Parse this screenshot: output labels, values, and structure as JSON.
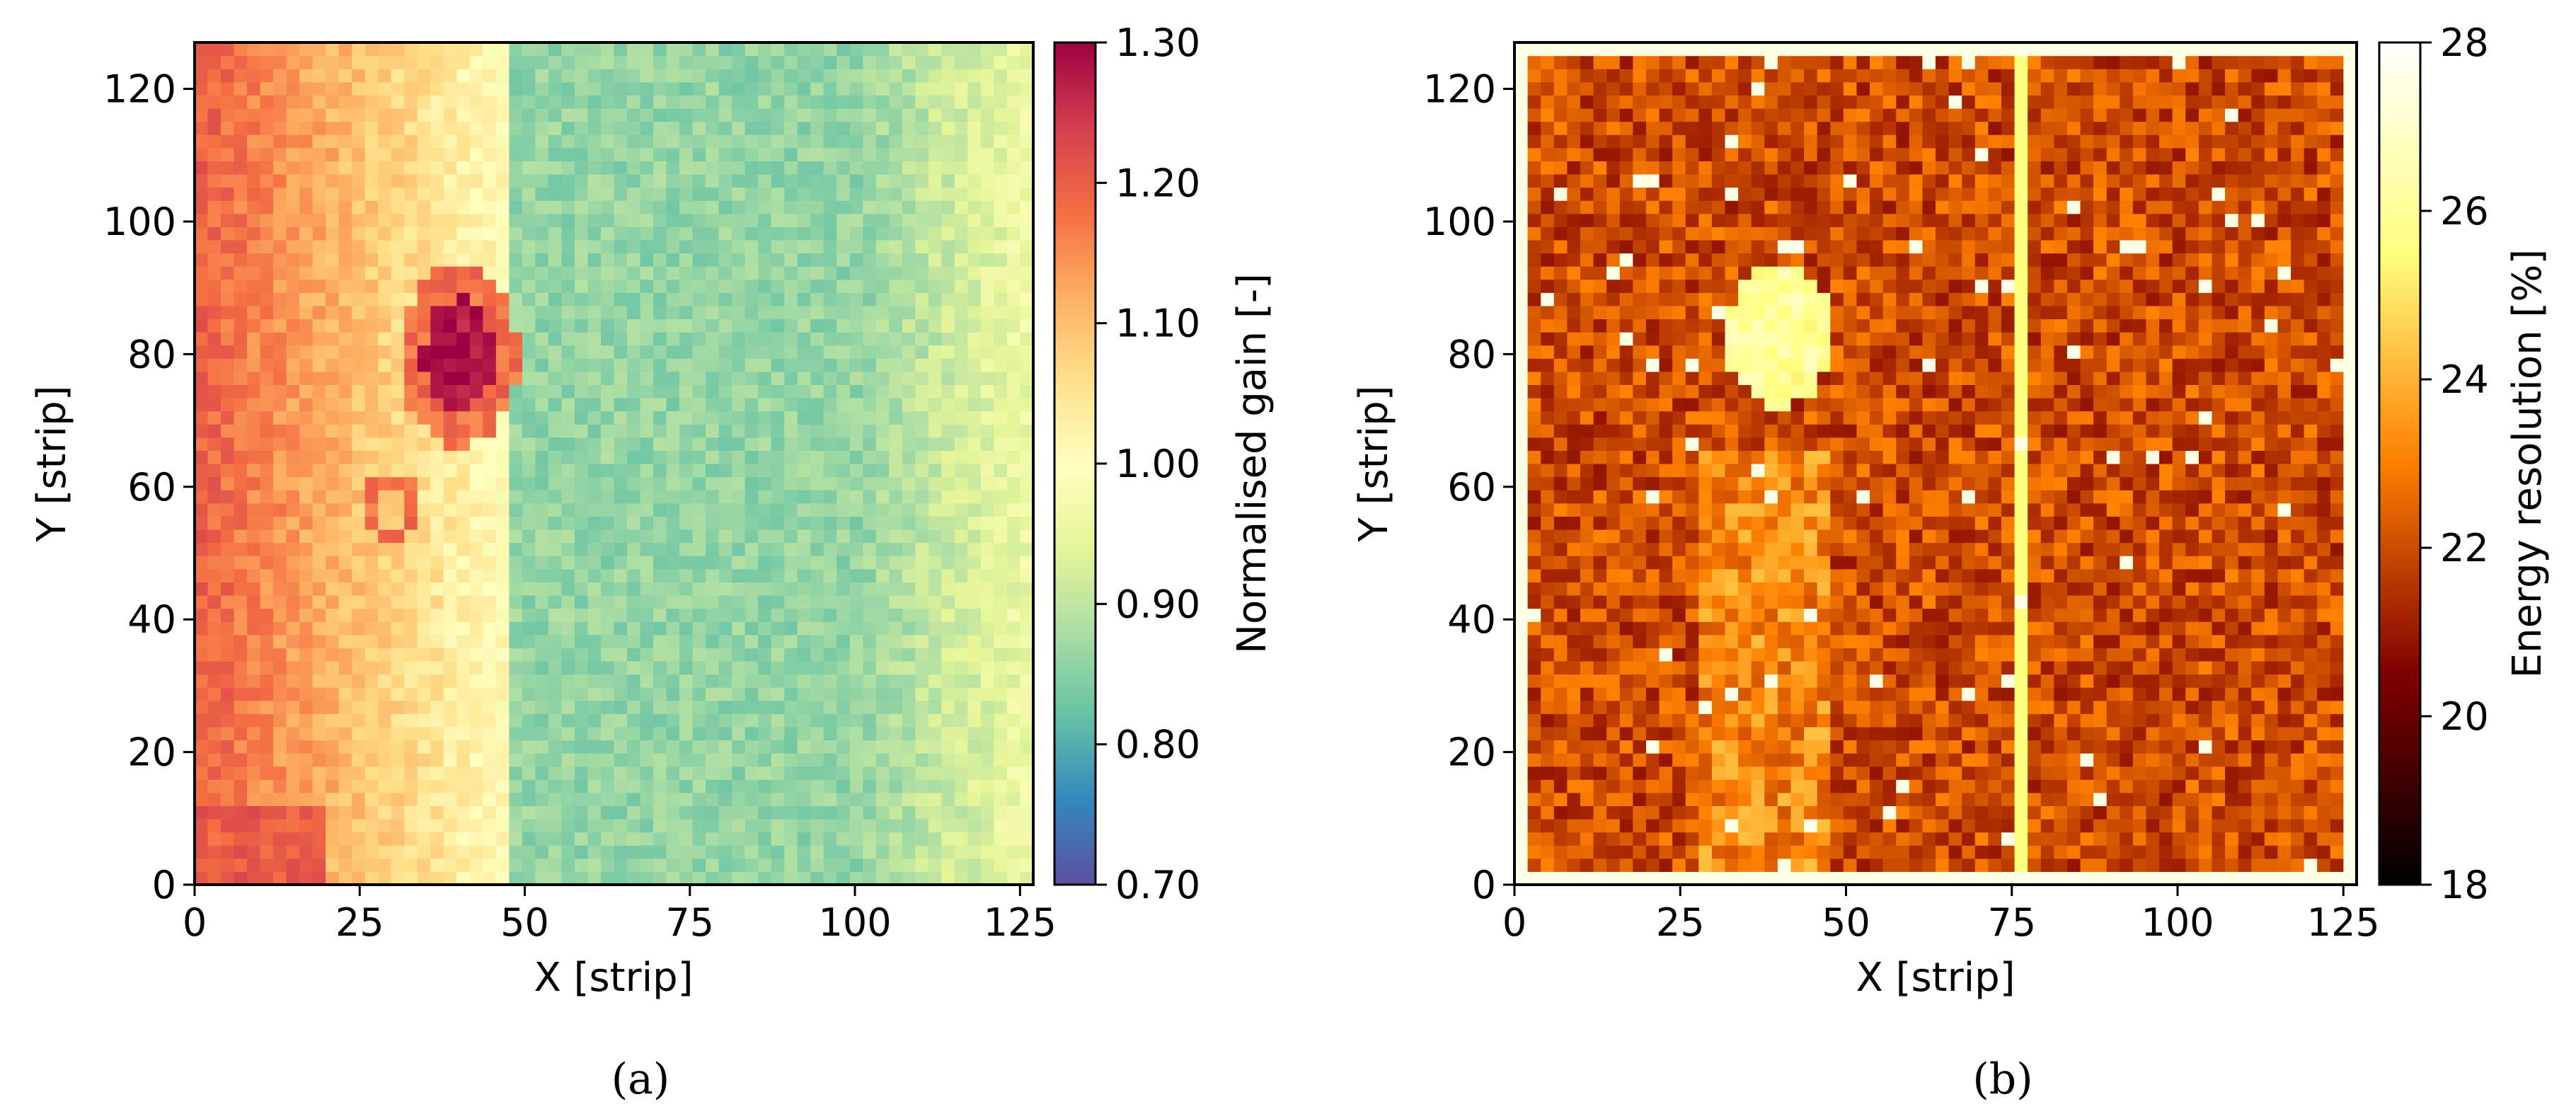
{
  "chart_data": [
    {
      "type": "heatmap",
      "title": "",
      "xlabel": "X [strip]",
      "ylabel": "Y [strip]",
      "xlim": [
        0,
        127
      ],
      "ylim": [
        0,
        127
      ],
      "xticks": [
        0,
        25,
        50,
        75,
        100,
        125
      ],
      "yticks": [
        0,
        20,
        40,
        60,
        80,
        100,
        120
      ],
      "colorbar": {
        "label": "Normalised gain [-]",
        "range": [
          0.7,
          1.3
        ],
        "ticks": [
          "0.70",
          "0.80",
          "0.90",
          "1.00",
          "1.10",
          "1.20",
          "1.30"
        ],
        "tick_values": [
          0.7,
          0.8,
          0.9,
          1.0,
          1.1,
          1.2,
          1.3
        ],
        "colormap": "Spectral_r"
      },
      "caption": "(a)",
      "features": {
        "left_band_value": 1.2,
        "center_value": 1.0,
        "right_region_value": 0.86,
        "ring_center_strip": [
          40,
          80
        ],
        "ring_value": 1.28,
        "small_ring_center_strip": [
          30,
          57
        ],
        "small_ring_value": 1.18
      }
    },
    {
      "type": "heatmap",
      "title": "",
      "xlabel": "X [strip]",
      "ylabel": "Y [strip]",
      "xlim": [
        0,
        127
      ],
      "ylim": [
        0,
        127
      ],
      "xticks": [
        0,
        25,
        50,
        75,
        100,
        125
      ],
      "yticks": [
        0,
        20,
        40,
        60,
        80,
        100,
        120
      ],
      "colorbar": {
        "label": "Energy resolution [%]",
        "range": [
          18,
          28
        ],
        "ticks": [
          "18",
          "20",
          "22",
          "24",
          "26",
          "28"
        ],
        "tick_values": [
          18,
          20,
          22,
          24,
          26,
          28
        ],
        "colormap": "afmhot"
      },
      "caption": "(b)",
      "features": {
        "background_value": 22,
        "bright_blob_center_strip": [
          40,
          83
        ],
        "bright_blob_value": 26,
        "bright_column_strip": 77,
        "border_value": 28
      }
    }
  ],
  "colors": {
    "spectral_stops": [
      "#5e4fa2",
      "#3288bd",
      "#66c2a5",
      "#abdda4",
      "#e6f598",
      "#ffffbf",
      "#fee08b",
      "#fdae61",
      "#f46d43",
      "#d53e4f",
      "#9e0142"
    ],
    "afmhot_stops": [
      "#000000",
      "#7f0000",
      "#ff7f00",
      "#ffff7f",
      "#ffffff"
    ]
  }
}
